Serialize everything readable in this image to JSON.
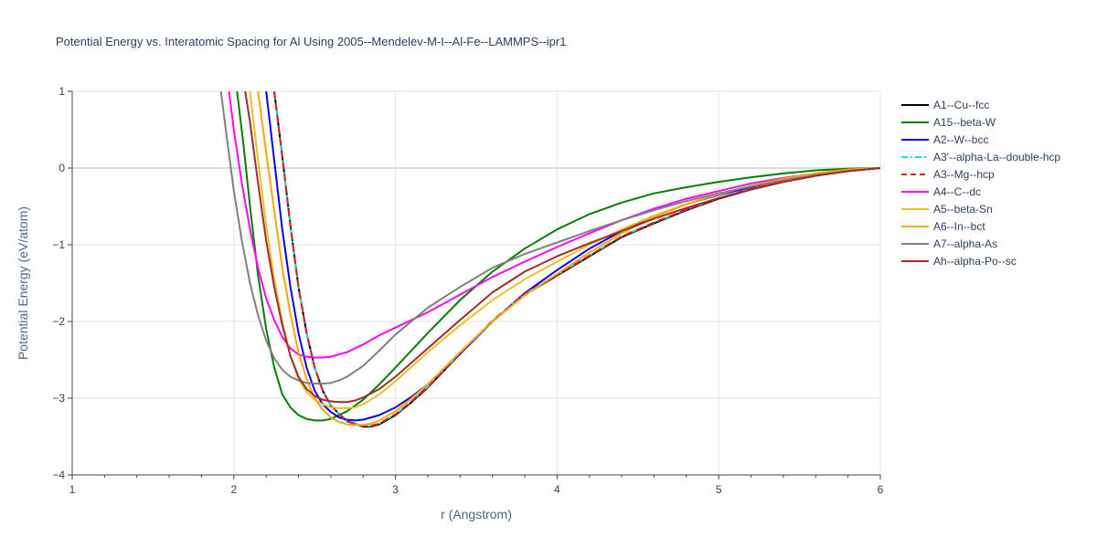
{
  "chart_data": {
    "type": "line",
    "title": "Potential Energy vs. Interatomic Spacing for Al Using 2005--Mendelev-M-I--Al-Fe--LAMMPS--ipr1",
    "xlabel": "r (Angstrom)",
    "ylabel": "Potential Energy (eV/atom)",
    "xlim": [
      1,
      6
    ],
    "ylim": [
      -4,
      1
    ],
    "xticks": [
      1,
      2,
      3,
      4,
      5,
      6
    ],
    "yticks": [
      1,
      0,
      -1,
      -2,
      -3,
      -4
    ],
    "ytick_labels": [
      "1",
      "0",
      "−1",
      "−2",
      "−3",
      "−4"
    ],
    "grid": true,
    "legend_position": "right",
    "series": [
      {
        "name": "A1--Cu--fcc",
        "color": "#000000",
        "dash": "solid",
        "x": [
          2.25,
          2.3,
          2.35,
          2.4,
          2.45,
          2.5,
          2.55,
          2.6,
          2.7,
          2.8,
          2.85,
          2.9,
          3.0,
          3.1,
          3.2,
          3.4,
          3.6,
          3.8,
          4.0,
          4.2,
          4.4,
          4.6,
          4.8,
          5.0,
          5.2,
          5.4,
          5.6,
          5.8,
          6.0
        ],
        "y": [
          1.0,
          0.15,
          -0.75,
          -1.55,
          -2.15,
          -2.6,
          -2.9,
          -3.1,
          -3.3,
          -3.37,
          -3.37,
          -3.34,
          -3.22,
          -3.05,
          -2.86,
          -2.42,
          -2.0,
          -1.65,
          -1.4,
          -1.15,
          -0.9,
          -0.72,
          -0.55,
          -0.4,
          -0.28,
          -0.18,
          -0.1,
          -0.04,
          0.0
        ]
      },
      {
        "name": "A15--beta-W",
        "color": "#008000",
        "dash": "solid",
        "x": [
          2.02,
          2.06,
          2.1,
          2.15,
          2.2,
          2.25,
          2.3,
          2.35,
          2.4,
          2.45,
          2.5,
          2.55,
          2.6,
          2.7,
          2.8,
          2.9,
          3.0,
          3.2,
          3.4,
          3.6,
          3.8,
          4.0,
          4.2,
          4.4,
          4.6,
          4.8,
          5.0,
          5.2,
          5.4,
          5.6,
          5.8,
          6.0
        ],
        "y": [
          1.0,
          0.3,
          -0.5,
          -1.4,
          -2.1,
          -2.6,
          -2.95,
          -3.12,
          -3.22,
          -3.27,
          -3.29,
          -3.29,
          -3.27,
          -3.17,
          -3.02,
          -2.82,
          -2.6,
          -2.15,
          -1.72,
          -1.35,
          -1.05,
          -0.8,
          -0.6,
          -0.45,
          -0.33,
          -0.25,
          -0.18,
          -0.12,
          -0.07,
          -0.03,
          -0.01,
          0.0
        ]
      },
      {
        "name": "A2--W--bcc",
        "color": "#0000ff",
        "dash": "solid",
        "x": [
          2.2,
          2.25,
          2.3,
          2.35,
          2.4,
          2.45,
          2.5,
          2.55,
          2.6,
          2.65,
          2.7,
          2.75,
          2.8,
          2.9,
          3.0,
          3.1,
          3.2,
          3.4,
          3.6,
          3.8,
          4.0,
          4.2,
          4.4,
          4.6,
          4.8,
          5.0,
          5.2,
          5.4,
          5.6,
          5.8,
          6.0
        ],
        "y": [
          1.0,
          0.1,
          -0.8,
          -1.55,
          -2.15,
          -2.6,
          -2.9,
          -3.08,
          -3.18,
          -3.25,
          -3.28,
          -3.29,
          -3.28,
          -3.22,
          -3.12,
          -2.98,
          -2.82,
          -2.42,
          -2.0,
          -1.63,
          -1.33,
          -1.05,
          -0.82,
          -0.63,
          -0.47,
          -0.35,
          -0.25,
          -0.16,
          -0.09,
          -0.04,
          0.0
        ]
      },
      {
        "name": "A3'--alpha-La--double-hcp",
        "color": "#00e5e5",
        "dash": "dashdot",
        "x": [
          2.25,
          2.3,
          2.35,
          2.4,
          2.45,
          2.5,
          2.55,
          2.6,
          2.7,
          2.8,
          2.85,
          2.9,
          3.0,
          3.1,
          3.2,
          3.4,
          3.6,
          3.8,
          4.0,
          4.2,
          4.4,
          4.6,
          4.8,
          5.0,
          5.2,
          5.4,
          5.6,
          5.8,
          6.0
        ],
        "y": [
          1.0,
          0.15,
          -0.75,
          -1.55,
          -2.15,
          -2.6,
          -2.9,
          -3.1,
          -3.3,
          -3.36,
          -3.36,
          -3.33,
          -3.21,
          -3.04,
          -2.85,
          -2.41,
          -1.99,
          -1.64,
          -1.39,
          -1.14,
          -0.89,
          -0.71,
          -0.54,
          -0.39,
          -0.27,
          -0.17,
          -0.09,
          -0.03,
          0.0
        ]
      },
      {
        "name": "A3--Mg--hcp",
        "color": "#e41a1c",
        "dash": "dash",
        "x": [
          2.25,
          2.3,
          2.35,
          2.4,
          2.45,
          2.5,
          2.55,
          2.6,
          2.7,
          2.8,
          2.85,
          2.9,
          3.0,
          3.1,
          3.2,
          3.4,
          3.6,
          3.8,
          4.0,
          4.2,
          4.4,
          4.6,
          4.8,
          5.0,
          5.2,
          5.4,
          5.6,
          5.8,
          6.0
        ],
        "y": [
          1.0,
          0.15,
          -0.75,
          -1.55,
          -2.15,
          -2.6,
          -2.9,
          -3.1,
          -3.3,
          -3.36,
          -3.36,
          -3.33,
          -3.21,
          -3.04,
          -2.85,
          -2.41,
          -1.99,
          -1.64,
          -1.39,
          -1.14,
          -0.89,
          -0.71,
          -0.54,
          -0.39,
          -0.27,
          -0.17,
          -0.09,
          -0.03,
          0.0
        ]
      },
      {
        "name": "A4--C--dc",
        "color": "#ff00ff",
        "dash": "solid",
        "x": [
          1.97,
          2.0,
          2.05,
          2.1,
          2.15,
          2.2,
          2.25,
          2.3,
          2.35,
          2.4,
          2.45,
          2.5,
          2.55,
          2.6,
          2.65,
          2.7,
          2.8,
          2.9,
          3.0,
          3.2,
          3.4,
          3.6,
          3.8,
          4.0,
          4.2,
          4.4,
          4.6,
          4.8,
          5.0,
          5.2,
          5.4,
          5.6,
          5.8,
          6.0
        ],
        "y": [
          1.0,
          0.5,
          -0.2,
          -0.8,
          -1.3,
          -1.7,
          -1.98,
          -2.2,
          -2.35,
          -2.43,
          -2.46,
          -2.47,
          -2.47,
          -2.46,
          -2.43,
          -2.4,
          -2.3,
          -2.18,
          -2.08,
          -1.88,
          -1.65,
          -1.42,
          -1.22,
          -1.03,
          -0.85,
          -0.68,
          -0.53,
          -0.4,
          -0.3,
          -0.2,
          -0.13,
          -0.07,
          -0.03,
          0.0
        ]
      },
      {
        "name": "A5--beta-Sn",
        "color": "#e6c229",
        "dash": "solid",
        "x": [
          2.1,
          2.15,
          2.2,
          2.25,
          2.3,
          2.35,
          2.4,
          2.45,
          2.5,
          2.55,
          2.6,
          2.65,
          2.7,
          2.75,
          2.8,
          2.9,
          3.0,
          3.2,
          3.4,
          3.6,
          3.8,
          4.0,
          4.2,
          4.4,
          4.6,
          4.8,
          5.0,
          5.2,
          5.4,
          5.6,
          5.8,
          6.0
        ],
        "y": [
          1.0,
          0.1,
          -0.75,
          -1.45,
          -2.0,
          -2.45,
          -2.75,
          -2.92,
          -3.02,
          -3.08,
          -3.12,
          -3.13,
          -3.13,
          -3.12,
          -3.08,
          -2.95,
          -2.78,
          -2.4,
          -2.05,
          -1.72,
          -1.45,
          -1.22,
          -1.0,
          -0.8,
          -0.62,
          -0.47,
          -0.34,
          -0.23,
          -0.14,
          -0.07,
          -0.02,
          0.0
        ]
      },
      {
        "name": "A6--In--bct",
        "color": "#ffa500",
        "dash": "solid",
        "x": [
          2.15,
          2.2,
          2.25,
          2.3,
          2.35,
          2.4,
          2.45,
          2.5,
          2.55,
          2.6,
          2.65,
          2.7,
          2.75,
          2.8,
          2.85,
          2.9,
          3.0,
          3.1,
          3.2,
          3.4,
          3.6,
          3.8,
          4.0,
          4.2,
          4.4,
          4.6,
          4.8,
          5.0,
          5.2,
          5.4,
          5.6,
          5.8,
          6.0
        ],
        "y": [
          1.0,
          0.2,
          -0.55,
          -1.3,
          -1.9,
          -2.4,
          -2.75,
          -3.0,
          -3.15,
          -3.25,
          -3.31,
          -3.34,
          -3.35,
          -3.35,
          -3.33,
          -3.29,
          -3.17,
          -3.0,
          -2.82,
          -2.4,
          -2.0,
          -1.66,
          -1.38,
          -1.1,
          -0.85,
          -0.64,
          -0.47,
          -0.34,
          -0.23,
          -0.14,
          -0.07,
          -0.02,
          0.0
        ]
      },
      {
        "name": "A7--alpha-As",
        "color": "#808080",
        "dash": "solid",
        "x": [
          1.92,
          1.95,
          2.0,
          2.05,
          2.1,
          2.15,
          2.2,
          2.25,
          2.3,
          2.35,
          2.4,
          2.45,
          2.5,
          2.55,
          2.6,
          2.65,
          2.7,
          2.8,
          2.9,
          3.0,
          3.2,
          3.4,
          3.6,
          3.8,
          4.0,
          4.2,
          4.4,
          4.6,
          4.8,
          5.0,
          5.2,
          5.4,
          5.6,
          5.8,
          6.0
        ],
        "y": [
          1.0,
          0.5,
          -0.3,
          -0.95,
          -1.5,
          -1.92,
          -2.25,
          -2.48,
          -2.63,
          -2.72,
          -2.77,
          -2.8,
          -2.81,
          -2.81,
          -2.8,
          -2.77,
          -2.72,
          -2.58,
          -2.38,
          -2.17,
          -1.82,
          -1.55,
          -1.3,
          -1.12,
          -0.97,
          -0.82,
          -0.68,
          -0.55,
          -0.43,
          -0.33,
          -0.24,
          -0.16,
          -0.09,
          -0.04,
          0.0
        ]
      },
      {
        "name": "Ah--alpha-Po--sc",
        "color": "#a52a2a",
        "dash": "solid",
        "x": [
          2.07,
          2.1,
          2.15,
          2.2,
          2.25,
          2.3,
          2.35,
          2.4,
          2.45,
          2.5,
          2.55,
          2.6,
          2.65,
          2.7,
          2.75,
          2.8,
          2.9,
          3.0,
          3.2,
          3.4,
          3.6,
          3.8,
          4.0,
          4.2,
          4.4,
          4.6,
          4.8,
          5.0,
          5.2,
          5.4,
          5.6,
          5.8,
          6.0
        ],
        "y": [
          1.0,
          0.6,
          -0.2,
          -0.95,
          -1.55,
          -2.05,
          -2.45,
          -2.72,
          -2.88,
          -2.97,
          -3.02,
          -3.04,
          -3.05,
          -3.05,
          -3.03,
          -2.99,
          -2.88,
          -2.72,
          -2.35,
          -1.98,
          -1.62,
          -1.35,
          -1.15,
          -0.98,
          -0.82,
          -0.66,
          -0.52,
          -0.39,
          -0.28,
          -0.18,
          -0.1,
          -0.04,
          0.0
        ]
      }
    ]
  }
}
